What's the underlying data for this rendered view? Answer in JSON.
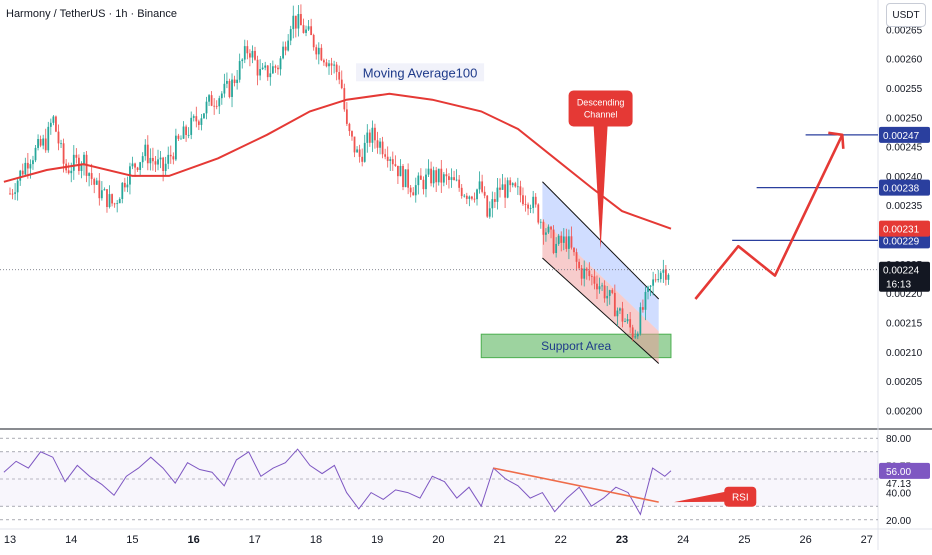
{
  "header": {
    "title": "Harmony / TetherUS · 1h · Binance",
    "currency": "USDT"
  },
  "colors": {
    "up": "#26a69a",
    "down": "#ef5350",
    "ma": "#e53935",
    "rsi": "#7e57c2",
    "channel": "#2962ff",
    "support": "#4caf50",
    "target": "#2a3f9e",
    "arrow": "#e53935",
    "current": "#131722"
  },
  "annotations": {
    "ma_label": "Moving Average100",
    "support_label": "Support Area",
    "channel_callout": [
      "Descending",
      "Channel"
    ],
    "rsi_callout": "RSI"
  },
  "chart_data": [
    {
      "type": "candlestick",
      "title": "Harmony / TetherUS · 1h · Binance",
      "x_ticks": [
        "13",
        "14",
        "15",
        "16",
        "17",
        "18",
        "19",
        "20",
        "21",
        "22",
        "23",
        "24",
        "25",
        "26",
        "27"
      ],
      "y_ticks": [
        "0.00265",
        "0.00260",
        "0.00255",
        "0.00250",
        "0.00245",
        "0.00240",
        "0.00235",
        "0.00230",
        "0.00225",
        "0.00220",
        "0.00215",
        "0.00210",
        "0.00205",
        "0.00200"
      ],
      "ylim": [
        0.00197,
        0.0027
      ],
      "closes_path": [
        {
          "day": 13.0,
          "price": 0.00237
        },
        {
          "day": 13.3,
          "price": 0.00243
        },
        {
          "day": 13.6,
          "price": 0.00246
        },
        {
          "day": 13.7,
          "price": 0.0025
        },
        {
          "day": 13.9,
          "price": 0.00241
        },
        {
          "day": 14.2,
          "price": 0.00243
        },
        {
          "day": 14.4,
          "price": 0.00238
        },
        {
          "day": 14.7,
          "price": 0.00235
        },
        {
          "day": 14.9,
          "price": 0.0024
        },
        {
          "day": 15.2,
          "price": 0.00244
        },
        {
          "day": 15.5,
          "price": 0.00241
        },
        {
          "day": 15.7,
          "price": 0.00245
        },
        {
          "day": 16.0,
          "price": 0.00249
        },
        {
          "day": 16.3,
          "price": 0.00253
        },
        {
          "day": 16.6,
          "price": 0.00255
        },
        {
          "day": 16.9,
          "price": 0.00262
        },
        {
          "day": 17.1,
          "price": 0.00257
        },
        {
          "day": 17.4,
          "price": 0.00259
        },
        {
          "day": 17.6,
          "price": 0.00267
        },
        {
          "day": 17.8,
          "price": 0.00265
        },
        {
          "day": 18.1,
          "price": 0.00261
        },
        {
          "day": 18.4,
          "price": 0.00257
        },
        {
          "day": 18.5,
          "price": 0.00248
        },
        {
          "day": 18.7,
          "price": 0.00243
        },
        {
          "day": 18.9,
          "price": 0.00247
        },
        {
          "day": 19.2,
          "price": 0.00244
        },
        {
          "day": 19.4,
          "price": 0.0024
        },
        {
          "day": 19.6,
          "price": 0.00238
        },
        {
          "day": 19.9,
          "price": 0.0024
        },
        {
          "day": 20.2,
          "price": 0.00239
        },
        {
          "day": 20.5,
          "price": 0.00237
        },
        {
          "day": 20.7,
          "price": 0.00238
        },
        {
          "day": 20.8,
          "price": 0.00233
        },
        {
          "day": 21.0,
          "price": 0.00238
        },
        {
          "day": 21.3,
          "price": 0.00237
        },
        {
          "day": 21.5,
          "price": 0.00236
        },
        {
          "day": 21.7,
          "price": 0.00232
        },
        {
          "day": 21.9,
          "price": 0.00228
        },
        {
          "day": 22.1,
          "price": 0.00229
        },
        {
          "day": 22.3,
          "price": 0.00224
        },
        {
          "day": 22.6,
          "price": 0.00222
        },
        {
          "day": 22.8,
          "price": 0.00219
        },
        {
          "day": 23.0,
          "price": 0.00216
        },
        {
          "day": 23.2,
          "price": 0.00213
        },
        {
          "day": 23.4,
          "price": 0.00219
        },
        {
          "day": 23.6,
          "price": 0.00224
        },
        {
          "day": 23.8,
          "price": 0.00224
        }
      ],
      "moving_average_100": [
        {
          "day": 12.9,
          "price": 0.00239
        },
        {
          "day": 13.6,
          "price": 0.00241
        },
        {
          "day": 14.2,
          "price": 0.00242
        },
        {
          "day": 15.0,
          "price": 0.0024
        },
        {
          "day": 15.6,
          "price": 0.0024
        },
        {
          "day": 16.4,
          "price": 0.00243
        },
        {
          "day": 17.2,
          "price": 0.00247
        },
        {
          "day": 17.9,
          "price": 0.00251
        },
        {
          "day": 18.5,
          "price": 0.00253
        },
        {
          "day": 19.2,
          "price": 0.00254
        },
        {
          "day": 19.9,
          "price": 0.00253
        },
        {
          "day": 20.7,
          "price": 0.00251
        },
        {
          "day": 21.3,
          "price": 0.00248
        },
        {
          "day": 21.9,
          "price": 0.00243
        },
        {
          "day": 22.5,
          "price": 0.00238
        },
        {
          "day": 23.0,
          "price": 0.00234
        },
        {
          "day": 23.8,
          "price": 0.00231
        }
      ],
      "descending_channel": {
        "upper": [
          {
            "day": 21.7,
            "price": 0.00239
          },
          {
            "day": 23.6,
            "price": 0.00219
          }
        ],
        "lower": [
          {
            "day": 21.7,
            "price": 0.00226
          },
          {
            "day": 23.6,
            "price": 0.00208
          }
        ]
      },
      "support_area": {
        "from_day": 20.7,
        "to_day": 23.8,
        "low": 0.00209,
        "high": 0.00213
      },
      "projection_path": [
        {
          "day": 24.2,
          "price": 0.00219
        },
        {
          "day": 24.9,
          "price": 0.00228
        },
        {
          "day": 25.5,
          "price": 0.00223
        },
        {
          "day": 26.6,
          "price": 0.00247
        }
      ],
      "target_lines": [
        {
          "price": 0.00229,
          "label": "0.00229",
          "from_day": 24.8
        },
        {
          "price": 0.00238,
          "label": "0.00238",
          "from_day": 25.2
        },
        {
          "price": 0.00247,
          "label": "0.00247",
          "from_day": 26.0
        }
      ],
      "price_labels": [
        {
          "price": 0.00231,
          "label": "0.00231",
          "color": "#e53935"
        },
        {
          "price": 0.00224,
          "label": "0.00224",
          "sublabel": "16:13",
          "color": "#131722"
        }
      ],
      "current_price": 0.00224
    },
    {
      "type": "line",
      "title": "",
      "y_ticks": [
        "80.00",
        "59.75",
        "47.13",
        "40.00",
        "20.00"
      ],
      "current_value": "56.00",
      "ylim": [
        14,
        86
      ],
      "levels": [
        80,
        70,
        50,
        30,
        20
      ],
      "values": [
        {
          "day": 12.9,
          "value": 55
        },
        {
          "day": 13.1,
          "value": 63
        },
        {
          "day": 13.3,
          "value": 58
        },
        {
          "day": 13.5,
          "value": 70
        },
        {
          "day": 13.7,
          "value": 66
        },
        {
          "day": 13.9,
          "value": 48
        },
        {
          "day": 14.1,
          "value": 60
        },
        {
          "day": 14.3,
          "value": 52
        },
        {
          "day": 14.5,
          "value": 46
        },
        {
          "day": 14.7,
          "value": 38
        },
        {
          "day": 14.9,
          "value": 52
        },
        {
          "day": 15.1,
          "value": 58
        },
        {
          "day": 15.3,
          "value": 66
        },
        {
          "day": 15.5,
          "value": 58
        },
        {
          "day": 15.7,
          "value": 47
        },
        {
          "day": 15.9,
          "value": 62
        },
        {
          "day": 16.1,
          "value": 57
        },
        {
          "day": 16.3,
          "value": 55
        },
        {
          "day": 16.5,
          "value": 45
        },
        {
          "day": 16.7,
          "value": 64
        },
        {
          "day": 16.9,
          "value": 70
        },
        {
          "day": 17.1,
          "value": 52
        },
        {
          "day": 17.3,
          "value": 58
        },
        {
          "day": 17.5,
          "value": 62
        },
        {
          "day": 17.7,
          "value": 72
        },
        {
          "day": 17.9,
          "value": 60
        },
        {
          "day": 18.1,
          "value": 54
        },
        {
          "day": 18.3,
          "value": 60
        },
        {
          "day": 18.5,
          "value": 40
        },
        {
          "day": 18.7,
          "value": 28
        },
        {
          "day": 18.9,
          "value": 40
        },
        {
          "day": 19.1,
          "value": 35
        },
        {
          "day": 19.3,
          "value": 42
        },
        {
          "day": 19.5,
          "value": 40
        },
        {
          "day": 19.7,
          "value": 36
        },
        {
          "day": 19.9,
          "value": 52
        },
        {
          "day": 20.1,
          "value": 48
        },
        {
          "day": 20.3,
          "value": 36
        },
        {
          "day": 20.5,
          "value": 44
        },
        {
          "day": 20.7,
          "value": 30
        },
        {
          "day": 20.9,
          "value": 58
        },
        {
          "day": 21.1,
          "value": 50
        },
        {
          "day": 21.3,
          "value": 45
        },
        {
          "day": 21.5,
          "value": 36
        },
        {
          "day": 21.7,
          "value": 40
        },
        {
          "day": 21.9,
          "value": 26
        },
        {
          "day": 22.1,
          "value": 36
        },
        {
          "day": 22.3,
          "value": 44
        },
        {
          "day": 22.5,
          "value": 30
        },
        {
          "day": 22.7,
          "value": 36
        },
        {
          "day": 22.9,
          "value": 44
        },
        {
          "day": 23.1,
          "value": 40
        },
        {
          "day": 23.3,
          "value": 24
        },
        {
          "day": 23.5,
          "value": 58
        },
        {
          "day": 23.7,
          "value": 52
        },
        {
          "day": 23.8,
          "value": 56
        }
      ],
      "divergence_line": [
        {
          "day": 20.9,
          "value": 58
        },
        {
          "day": 23.6,
          "value": 33
        }
      ]
    }
  ]
}
